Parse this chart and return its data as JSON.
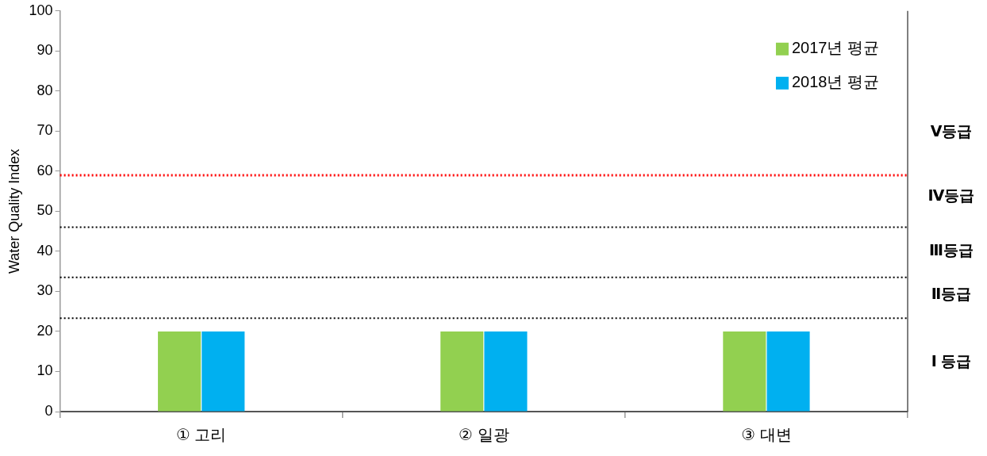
{
  "chart_data": {
    "type": "bar",
    "ylabel": "Water Quality Index",
    "categories": [
      "① 고리",
      "② 일광",
      "③ 대변"
    ],
    "series": [
      {
        "name": "2017년 평균",
        "color": "#92d050",
        "values": [
          20,
          20,
          20
        ]
      },
      {
        "name": "2018년 평균",
        "color": "#00b0f0",
        "values": [
          20,
          20,
          20
        ]
      }
    ],
    "ylim": [
      0,
      100
    ],
    "yticks": [
      0,
      10,
      20,
      30,
      40,
      50,
      60,
      70,
      80,
      90,
      100
    ],
    "grid": false,
    "legend": "top right",
    "ref_lines": [
      {
        "axis": "y",
        "value": 59,
        "color": "#ff0000",
        "line_style": "dotted"
      },
      {
        "axis": "y",
        "value": 46,
        "color": "#000000",
        "line_style": "dotted"
      },
      {
        "axis": "y",
        "value": 33.5,
        "color": "#000000",
        "line_style": "dotted"
      },
      {
        "axis": "y",
        "value": 23.3,
        "color": "#000000",
        "line_style": "dotted"
      }
    ],
    "annotations": [
      "Ⅴ등급",
      "Ⅳ등급",
      "Ⅲ등급",
      "Ⅱ등급",
      "Ⅰ 등급"
    ]
  }
}
